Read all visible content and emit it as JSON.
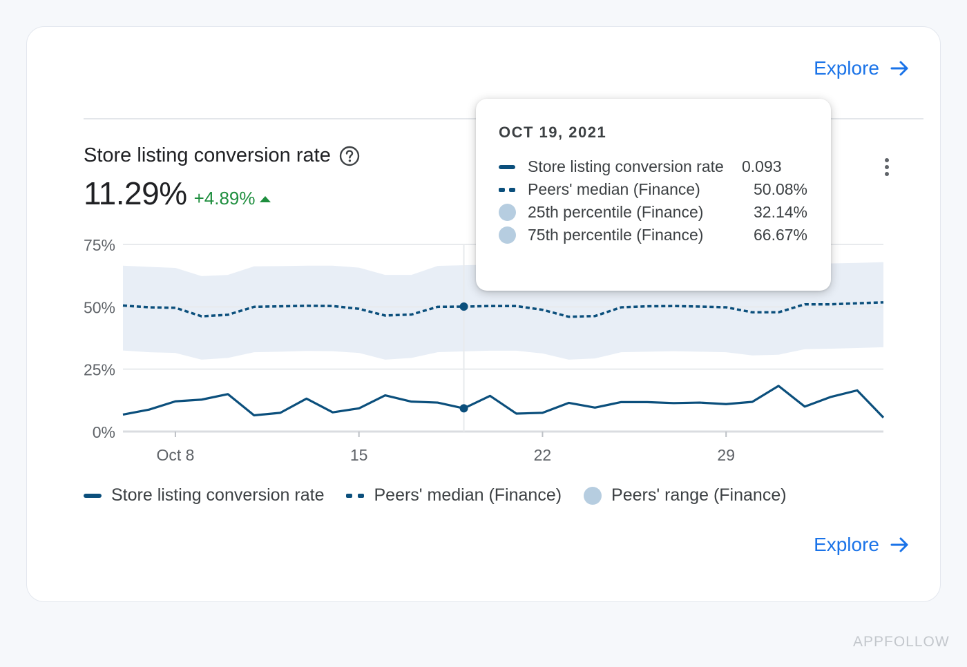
{
  "explore_label": "Explore",
  "metric": {
    "title": "Store listing conversion rate",
    "value": "11.29%",
    "delta": "+4.89%"
  },
  "tooltip": {
    "date": "OCT 19, 2021",
    "rows": [
      {
        "label": "Store listing conversion rate",
        "value": "0.093"
      },
      {
        "label": "Peers' median (Finance)",
        "value": "50.08%"
      },
      {
        "label": "25th percentile (Finance)",
        "value": "32.14%"
      },
      {
        "label": "75th percentile (Finance)",
        "value": "66.67%"
      }
    ]
  },
  "legend": {
    "items": [
      {
        "label": "Store listing conversion rate"
      },
      {
        "label": "Peers' median (Finance)"
      },
      {
        "label": "Peers' range (Finance)"
      }
    ]
  },
  "colors": {
    "series": "#0b4f7c",
    "band": "#e8eef6",
    "band_swatch": "#b6cde0",
    "positive": "#1e8e3e",
    "link": "#1a73e8"
  },
  "watermark": "APPFOLLOW",
  "chart_data": {
    "type": "line",
    "x_start": "2021-10-06",
    "x_end": "2021-11-04",
    "x_ticks": [
      {
        "date": "2021-10-08",
        "label": "Oct 8"
      },
      {
        "date": "2021-10-15",
        "label": "15"
      },
      {
        "date": "2021-10-22",
        "label": "22"
      },
      {
        "date": "2021-10-29",
        "label": "29"
      }
    ],
    "y_ticks": [
      {
        "value": 0,
        "label": "0%"
      },
      {
        "value": 25,
        "label": "25%"
      },
      {
        "value": 50,
        "label": "50%"
      },
      {
        "value": 75,
        "label": "75%"
      }
    ],
    "ylim": [
      0,
      75
    ],
    "grid": true,
    "legend_position": "bottom",
    "highlight_date": "2021-10-19",
    "series": [
      {
        "name": "Store listing conversion rate",
        "style": "solid",
        "values": [
          6.8,
          8.8,
          12.1,
          12.8,
          15.0,
          6.5,
          7.5,
          13.2,
          7.7,
          9.3,
          14.5,
          12.0,
          11.6,
          9.3,
          14.3,
          7.2,
          7.5,
          11.5,
          9.6,
          11.8,
          11.8,
          11.4,
          11.6,
          11.0,
          11.9,
          18.3,
          10.0,
          13.9,
          16.5,
          5.6
        ]
      },
      {
        "name": "Peers' median (Finance)",
        "style": "dotted",
        "values": [
          50.5,
          49.8,
          49.6,
          46.2,
          46.8,
          50.0,
          50.2,
          50.4,
          50.3,
          49.2,
          46.5,
          46.9,
          50.0,
          50.08,
          50.3,
          50.3,
          48.8,
          46.0,
          46.3,
          49.8,
          50.2,
          50.3,
          50.1,
          49.8,
          47.8,
          47.8,
          51.0,
          51.0,
          51.4,
          51.8
        ]
      },
      {
        "name": "25th percentile (Finance)",
        "style": "band-lower",
        "values": [
          32.5,
          31.8,
          31.5,
          28.8,
          29.5,
          31.8,
          32.0,
          32.3,
          32.2,
          31.5,
          28.8,
          29.5,
          31.8,
          32.14,
          32.4,
          32.4,
          31.3,
          28.8,
          29.3,
          31.8,
          32.0,
          32.2,
          32.0,
          31.8,
          30.5,
          30.8,
          33.0,
          33.2,
          33.5,
          33.8
        ]
      },
      {
        "name": "75th percentile (Finance)",
        "style": "band-upper",
        "values": [
          66.5,
          66.0,
          65.6,
          62.3,
          62.8,
          66.2,
          66.3,
          66.5,
          66.5,
          65.7,
          62.8,
          62.8,
          66.4,
          66.67,
          66.9,
          66.9,
          65.6,
          62.8,
          62.8,
          66.4,
          66.8,
          66.8,
          66.8,
          66.5,
          64.5,
          64.8,
          67.4,
          67.4,
          67.6,
          67.9
        ]
      }
    ]
  }
}
